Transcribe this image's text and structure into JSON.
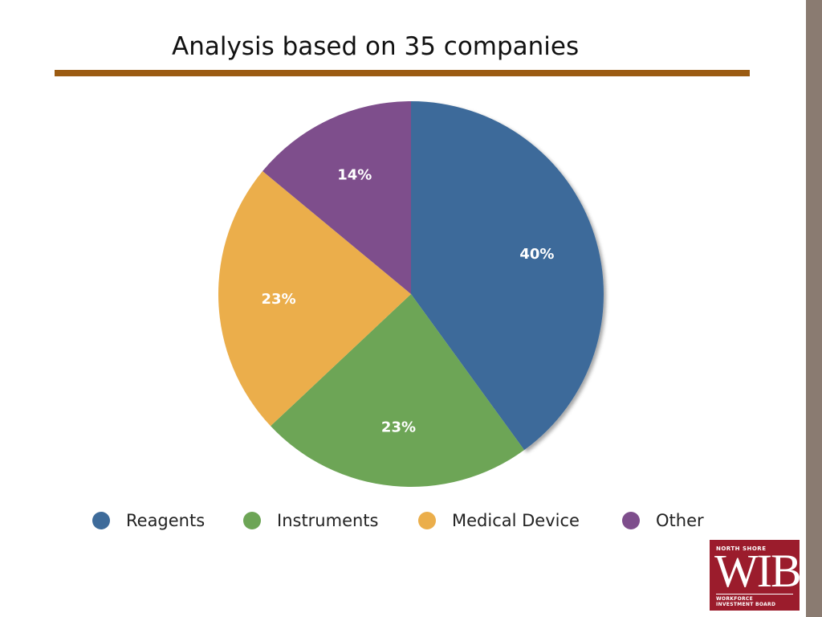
{
  "title": "Analysis based on 35 companies",
  "colors": {
    "rule": "#9b5b12",
    "strip": "#8a7b71",
    "logo_bg": "#9b1c2c"
  },
  "chart_data": {
    "type": "pie",
    "title": "",
    "slices": [
      {
        "label": "Reagents",
        "value": 40,
        "display": "40%",
        "color": "#3e6b9a"
      },
      {
        "label": "Instruments",
        "value": 23,
        "display": "23%",
        "color": "#6da556"
      },
      {
        "label": "Medical Device",
        "value": 23,
        "display": "23%",
        "color": "#ebae4b"
      },
      {
        "label": "Other",
        "value": 14,
        "display": "14%",
        "color": "#7e4e8c"
      }
    ],
    "start": "12 o'clock",
    "direction": "clockwise",
    "legend_position": "bottom"
  },
  "logo": {
    "top_text": "NORTH SHORE",
    "main_text": "WIB",
    "bottom_line1": "WORKFORCE",
    "bottom_line2": "INVESTMENT BOARD"
  }
}
